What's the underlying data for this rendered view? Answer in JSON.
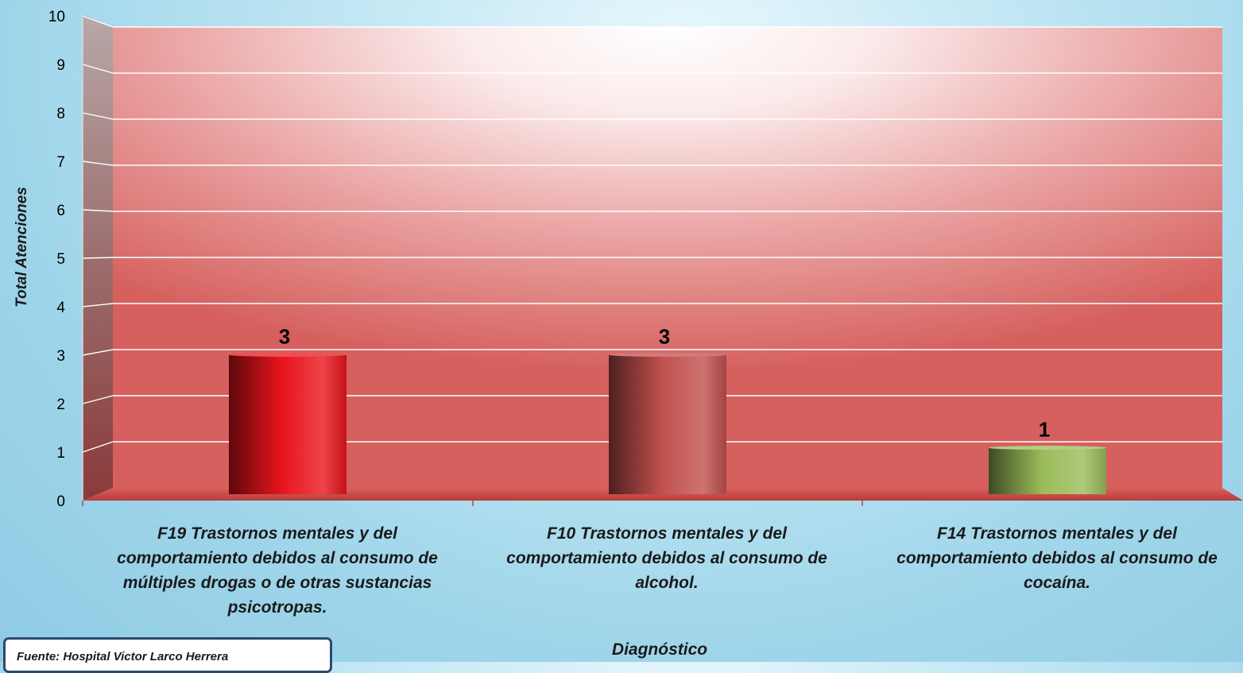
{
  "chart_data": {
    "type": "bar",
    "categories": [
      "F19 Trastornos mentales y del comportamiento debidos al consumo de múltiples drogas o de otras sustancias psicotropas.",
      "F10 Trastornos mentales y del comportamiento debidos al consumo de alcohol.",
      "F14 Trastornos mentales y del comportamiento debidos al consumo de cocaína."
    ],
    "category_lines": [
      [
        "F19 Trastornos mentales y del",
        "comportamiento debidos al consumo de",
        "múltiples drogas o de otras sustancias",
        "psicotropas."
      ],
      [
        "F10 Trastornos mentales y del",
        "comportamiento debidos al consumo de",
        "alcohol."
      ],
      [
        "F14 Trastornos mentales y del",
        "comportamiento debidos al consumo de",
        "cocaína."
      ]
    ],
    "values": [
      3,
      3,
      1
    ],
    "data_labels": [
      "3",
      "3",
      "1"
    ],
    "bar_colors": [
      "#e8141c",
      "#c0504d",
      "#9bbb59"
    ],
    "xlabel": "Diagnóstico",
    "ylabel": "Total Atenciones",
    "ylim": [
      0,
      10
    ],
    "yticks": [
      "0",
      "1",
      "2",
      "3",
      "4",
      "5",
      "6",
      "7",
      "8",
      "9",
      "10"
    ],
    "grid": true,
    "style": "3d-column"
  },
  "source": "Fuente:  Hospital Victor Larco Herrera"
}
